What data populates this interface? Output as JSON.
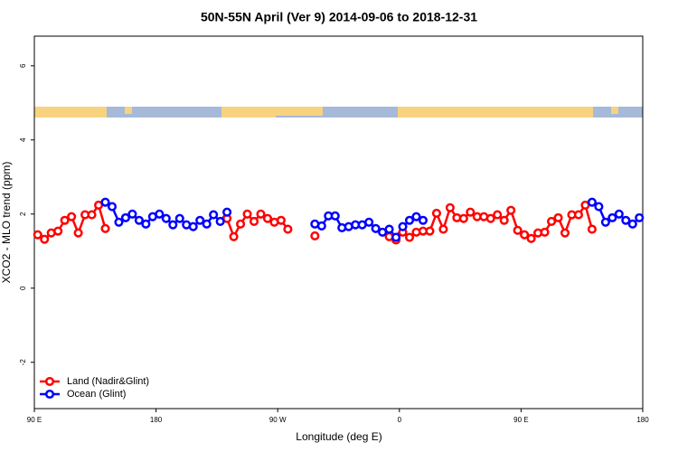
{
  "chart_data": {
    "type": "line",
    "title": "50N-55N April (Ver 9)   2014-09-06 to 2018-12-31",
    "xlabel": "Longitude (deg E)",
    "ylabel": "XCO2 - MLO trend (ppm)",
    "xlim": [
      90,
      540
    ],
    "ylim": [
      -3.25,
      6.8
    ],
    "xticks": [
      {
        "value": 90,
        "label": "90 E"
      },
      180,
      {
        "value": 270,
        "label": "90 W"
      },
      {
        "value": 360,
        "label": "0"
      },
      {
        "value": 450,
        "label": "90 E"
      },
      {
        "value": 540,
        "label": "180"
      }
    ],
    "yticks": [
      -2,
      0,
      2,
      4,
      6
    ],
    "legend": "lower left",
    "x": [
      92.5,
      97.5,
      102.5,
      107.5,
      112.5,
      117.5,
      122.5,
      127.5,
      132.5,
      137.5,
      142.5,
      147.5,
      152.5,
      157.5,
      162.5,
      167.5,
      172.5,
      177.5,
      182.5,
      187.5,
      192.5,
      197.5,
      202.5,
      207.5,
      212.5,
      217.5,
      222.5,
      227.5,
      232.5,
      237.5,
      242.5,
      247.5,
      252.5,
      257.5,
      262.5,
      267.5,
      272.5,
      277.5,
      282.5,
      287.5,
      292.5,
      297.5,
      302.5,
      307.5,
      312.5,
      317.5,
      322.5,
      327.5,
      332.5,
      337.5,
      342.5,
      347.5,
      352.5,
      357.5,
      362.5,
      367.5,
      372.5,
      377.5,
      382.5,
      387.5,
      392.5,
      397.5,
      402.5,
      407.5,
      412.5,
      417.5,
      422.5,
      427.5,
      432.5,
      437.5,
      442.5,
      447.5,
      452.5,
      457.5,
      462.5,
      467.5,
      472.5,
      477.5,
      482.5,
      487.5,
      492.5,
      497.5,
      502.5,
      507.5,
      512.5,
      517.5,
      522.5,
      527.5,
      532.5,
      537.5
    ],
    "series": [
      {
        "name": "Land (Nadir&Glint)",
        "color": "#ff0000",
        "values": [
          1.44,
          1.32,
          1.49,
          1.54,
          1.83,
          1.93,
          1.49,
          1.98,
          1.98,
          2.24,
          1.61,
          null,
          null,
          null,
          null,
          null,
          null,
          null,
          null,
          null,
          null,
          null,
          null,
          null,
          null,
          null,
          null,
          null,
          1.88,
          1.39,
          1.73,
          2.0,
          1.8,
          2.0,
          1.88,
          1.78,
          1.83,
          1.59,
          null,
          null,
          null,
          1.41,
          null,
          null,
          null,
          null,
          null,
          null,
          null,
          null,
          null,
          null,
          1.39,
          1.3,
          1.51,
          1.37,
          1.51,
          1.54,
          1.54,
          2.02,
          1.59,
          2.17,
          1.9,
          1.88,
          2.05,
          1.93,
          1.93,
          1.88,
          1.98,
          1.83,
          2.1,
          1.56,
          1.44,
          1.34,
          1.49,
          1.51,
          1.8,
          1.9,
          1.49,
          1.98,
          1.98,
          2.24,
          1.59,
          null,
          null,
          null,
          null,
          null,
          null,
          null
        ]
      },
      {
        "name": "Ocean (Glint)",
        "color": "#0000ff",
        "values": [
          null,
          null,
          null,
          null,
          null,
          null,
          null,
          null,
          null,
          null,
          2.32,
          2.2,
          1.78,
          1.9,
          2.0,
          1.83,
          1.73,
          1.93,
          2.0,
          1.88,
          1.71,
          1.88,
          1.71,
          1.66,
          1.83,
          1.73,
          1.98,
          1.8,
          2.05,
          null,
          null,
          null,
          null,
          null,
          null,
          null,
          null,
          null,
          null,
          null,
          null,
          1.73,
          1.68,
          1.95,
          1.95,
          1.63,
          1.66,
          1.71,
          1.71,
          1.78,
          1.61,
          1.51,
          1.59,
          1.37,
          1.66,
          1.83,
          1.93,
          1.83,
          null,
          null,
          null,
          null,
          null,
          null,
          null,
          null,
          null,
          null,
          null,
          null,
          null,
          null,
          null,
          null,
          null,
          null,
          null,
          null,
          null,
          null,
          null,
          null,
          2.32,
          2.2,
          1.78,
          1.9,
          2.0,
          1.83,
          1.73,
          1.9
        ]
      }
    ]
  }
}
